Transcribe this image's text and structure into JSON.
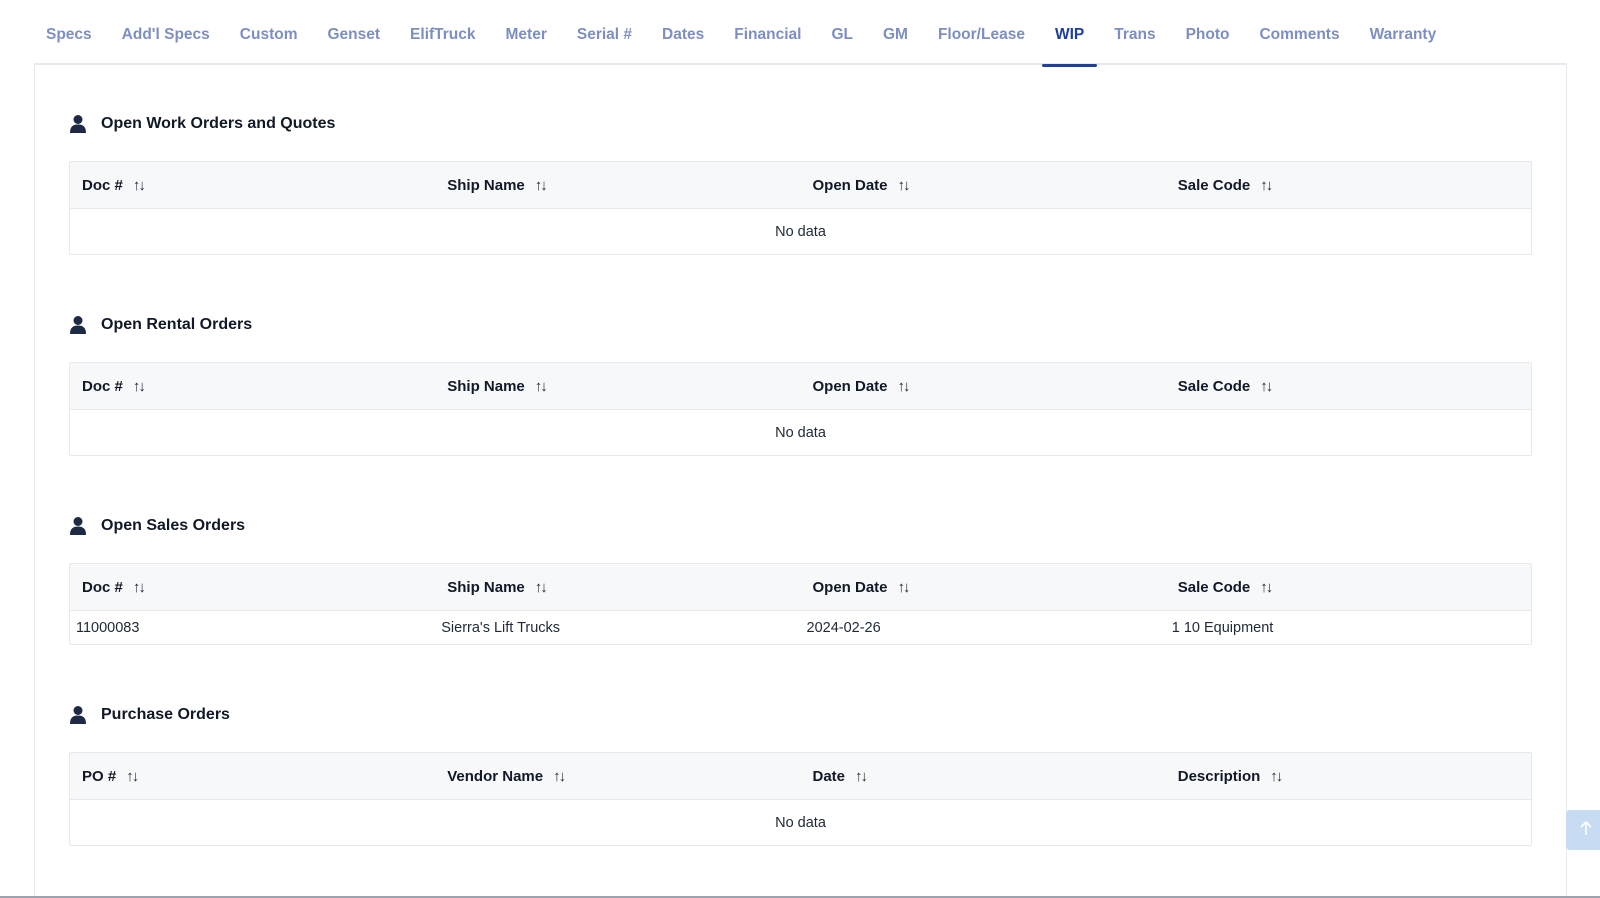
{
  "tabs": [
    {
      "label": "Specs",
      "active": false
    },
    {
      "label": "Add'l Specs",
      "active": false
    },
    {
      "label": "Custom",
      "active": false
    },
    {
      "label": "Genset",
      "active": false
    },
    {
      "label": "ElifTruck",
      "active": false
    },
    {
      "label": "Meter",
      "active": false
    },
    {
      "label": "Serial #",
      "active": false
    },
    {
      "label": "Dates",
      "active": false
    },
    {
      "label": "Financial",
      "active": false
    },
    {
      "label": "GL",
      "active": false
    },
    {
      "label": "GM",
      "active": false
    },
    {
      "label": "Floor/Lease",
      "active": false
    },
    {
      "label": "WIP",
      "active": true
    },
    {
      "label": "Trans",
      "active": false
    },
    {
      "label": "Photo",
      "active": false
    },
    {
      "label": "Comments",
      "active": false
    },
    {
      "label": "Warranty",
      "active": false
    }
  ],
  "sections": {
    "work_orders": {
      "title": "Open Work Orders and Quotes",
      "columns": [
        "Doc #",
        "Ship Name",
        "Open Date",
        "Sale Code"
      ],
      "empty_text": "No data"
    },
    "rental_orders": {
      "title": "Open Rental Orders",
      "columns": [
        "Doc #",
        "Ship Name",
        "Open Date",
        "Sale Code"
      ],
      "empty_text": "No data"
    },
    "sales_orders": {
      "title": "Open Sales Orders",
      "columns": [
        "Doc #",
        "Ship Name",
        "Open Date",
        "Sale Code"
      ],
      "rows": [
        [
          "11000083",
          "Sierra's Lift Trucks",
          "2024-02-26",
          "1 10 Equipment"
        ]
      ]
    },
    "purchase_orders": {
      "title": "Purchase Orders",
      "columns": [
        "PO #",
        "Vendor Name",
        "Date",
        "Description"
      ],
      "empty_text": "No data"
    }
  },
  "sort_glyph": "↑↓",
  "icons": {
    "section": "user-icon",
    "scroll": "arrow-up-icon"
  },
  "colors": {
    "tab_inactive": "#7d8fc2",
    "tab_active": "#1d3f9e",
    "header_bg": "#f7f8fa",
    "scroll_button": "#c7dcf3"
  }
}
